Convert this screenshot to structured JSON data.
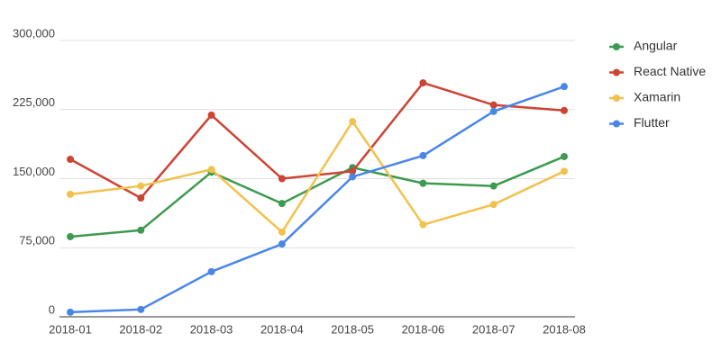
{
  "chart_data": {
    "type": "line",
    "categories": [
      "2018-01",
      "2018-02",
      "2018-03",
      "2018-04",
      "2018-05",
      "2018-06",
      "2018-07",
      "2018-08"
    ],
    "series": [
      {
        "name": "Angular",
        "color": "#3d9a50",
        "values": [
          87000,
          94000,
          157000,
          123000,
          162000,
          145000,
          142000,
          174000
        ]
      },
      {
        "name": "React Native",
        "color": "#cc4433",
        "values": [
          171000,
          129000,
          219000,
          150000,
          158000,
          254000,
          230000,
          224000
        ]
      },
      {
        "name": "Xamarin",
        "color": "#f2c14e",
        "values": [
          133000,
          142000,
          160000,
          92000,
          212000,
          100000,
          122000,
          158000
        ]
      },
      {
        "name": "Flutter",
        "color": "#4a86e8",
        "values": [
          5000,
          8000,
          49000,
          79000,
          152000,
          175000,
          223000,
          250000
        ]
      }
    ],
    "ylim": [
      0,
      300000
    ],
    "yticks": [
      0,
      {
        "value": 75000,
        "label": "75,000"
      },
      {
        "value": 150000,
        "label": "150,000"
      },
      {
        "value": 225000,
        "label": "225,000"
      },
      {
        "value": 300000,
        "label": "300,000"
      }
    ],
    "grid": true,
    "legend": "right"
  }
}
